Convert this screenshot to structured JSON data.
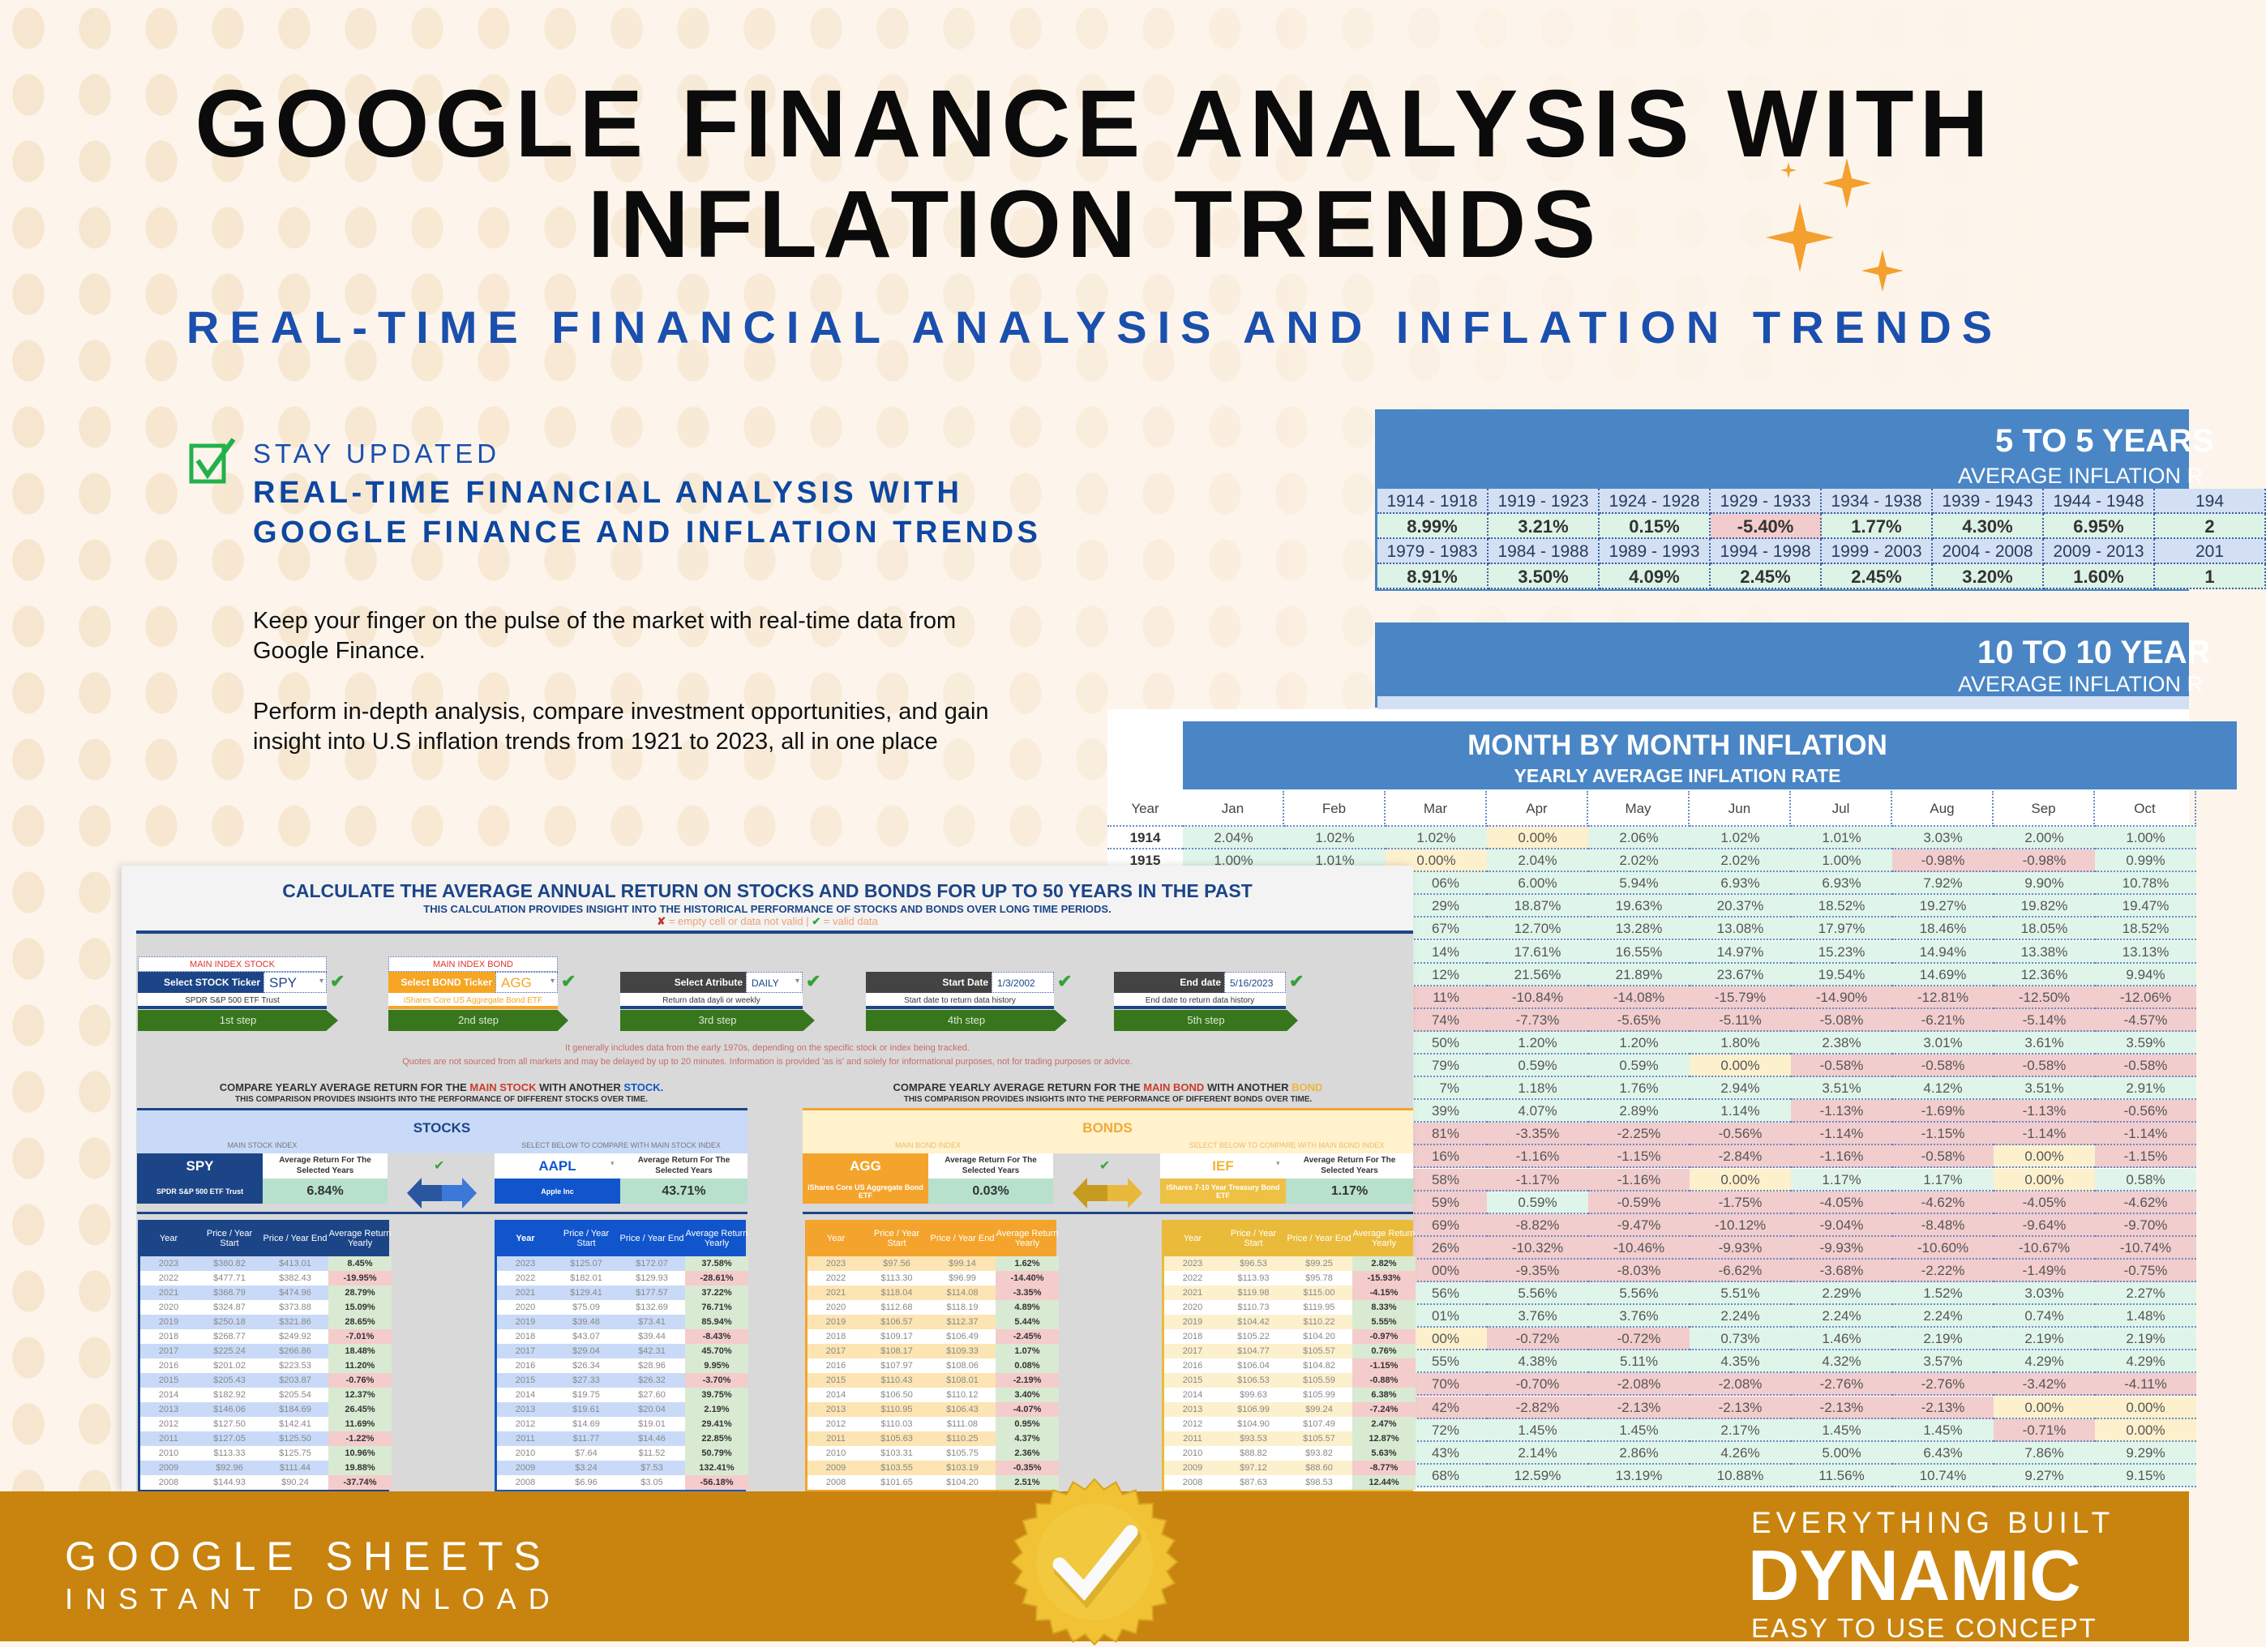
{
  "header": {
    "title_line1": "GOOGLE FINANCE ANALYSIS WITH",
    "title_line2": "INFLATION TRENDS",
    "subtitle": "REAL-TIME FINANCIAL ANALYSIS AND INFLATION TRENDS"
  },
  "feature": {
    "kicker": "STAY UPDATED",
    "heading": "REAL-TIME FINANCIAL ANALYSIS WITH GOOGLE FINANCE AND INFLATION TRENDS",
    "paragraphs": [
      "Keep your finger on the pulse of the market with real-time data from Google Finance.",
      "Perform in-depth analysis, compare investment opportunities, and gain insight into U.S inflation trends from 1921 to 2023, all in one place"
    ]
  },
  "five_year": {
    "title": "5 TO 5 YEARS",
    "subtitle": "AVERAGE INFLATION R",
    "rows": [
      {
        "ranges": [
          "1914 - 1918",
          "1919 - 1923",
          "1924 - 1928",
          "1929 - 1933",
          "1934 - 1938",
          "1939 - 1943",
          "1944 - 1948",
          "194"
        ],
        "values": [
          "8.99%",
          "3.21%",
          "0.15%",
          "-5.40%",
          "1.77%",
          "4.30%",
          "6.95%",
          "2"
        ]
      },
      {
        "ranges": [
          "1979 - 1983",
          "1984 - 1988",
          "1989 - 1993",
          "1994 - 1998",
          "1999 - 2003",
          "2004 - 2008",
          "2009 - 2013",
          "201"
        ],
        "values": [
          "8.91%",
          "3.50%",
          "4.09%",
          "2.45%",
          "2.45%",
          "3.20%",
          "1.60%",
          "1"
        ]
      }
    ]
  },
  "ten_year": {
    "title": "10 TO 10 YEAR",
    "subtitle": "AVERAGE INFLATION R"
  },
  "month": {
    "title": "MONTH BY MONTH INFLATION",
    "subtitle": "YEARLY AVERAGE INFLATION RATE",
    "columns": [
      "Year",
      "Jan",
      "Feb",
      "Mar",
      "Apr",
      "May",
      "Jun",
      "Jul",
      "Aug",
      "Sep",
      "Oct"
    ],
    "full_rows": [
      {
        "year": "1914",
        "values": [
          "2.04%",
          "1.02%",
          "1.02%",
          "0.00%",
          "2.06%",
          "1.02%",
          "1.01%",
          "3.03%",
          "2.00%",
          "1.00%"
        ]
      },
      {
        "year": "1915",
        "values": [
          "1.00%",
          "1.01%",
          "0.00%",
          "2.04%",
          "2.02%",
          "2.02%",
          "1.00%",
          "-0.98%",
          "-0.98%",
          "0.99%"
        ]
      }
    ],
    "partial_rows": [
      {
        "mar": "06%",
        "mar_tone": "pos",
        "values": [
          "6.00%",
          "5.94%",
          "6.93%",
          "6.93%",
          "7.92%",
          "9.90%",
          "10.78%"
        ]
      },
      {
        "mar": "29%",
        "mar_tone": "pos",
        "values": [
          "18.87%",
          "19.63%",
          "20.37%",
          "18.52%",
          "19.27%",
          "19.82%",
          "19.47%"
        ]
      },
      {
        "mar": "67%",
        "mar_tone": "pos",
        "values": [
          "12.70%",
          "13.28%",
          "13.08%",
          "17.97%",
          "18.46%",
          "18.05%",
          "18.52%"
        ]
      },
      {
        "mar": "14%",
        "mar_tone": "pos",
        "values": [
          "17.61%",
          "16.55%",
          "14.97%",
          "15.23%",
          "14.94%",
          "13.38%",
          "13.13%"
        ]
      },
      {
        "mar": "12%",
        "mar_tone": "pos",
        "values": [
          "21.56%",
          "21.89%",
          "23.67%",
          "19.54%",
          "14.69%",
          "12.36%",
          "9.94%"
        ]
      },
      {
        "mar": "11%",
        "mar_tone": "neg",
        "values": [
          "-10.84%",
          "-14.08%",
          "-15.79%",
          "-14.90%",
          "-12.81%",
          "-12.50%",
          "-12.06%"
        ]
      },
      {
        "mar": "74%",
        "mar_tone": "neg",
        "values": [
          "-7.73%",
          "-5.65%",
          "-5.11%",
          "-5.08%",
          "-6.21%",
          "-5.14%",
          "-4.57%"
        ]
      },
      {
        "mar": "50%",
        "mar_tone": "pos",
        "values": [
          "1.20%",
          "1.20%",
          "1.80%",
          "2.38%",
          "3.01%",
          "3.61%",
          "3.59%"
        ]
      },
      {
        "mar": "79%",
        "mar_tone": "pos",
        "values": [
          "0.59%",
          "0.59%",
          "0.00%",
          "-0.58%",
          "-0.58%",
          "-0.58%",
          "-0.58%"
        ]
      },
      {
        "mar": "7%",
        "mar_tone": "pos",
        "values": [
          "1.18%",
          "1.76%",
          "2.94%",
          "3.51%",
          "4.12%",
          "3.51%",
          "2.91%"
        ]
      },
      {
        "mar": "39%",
        "mar_tone": "pos",
        "values": [
          "4.07%",
          "2.89%",
          "1.14%",
          "-1.13%",
          "-1.69%",
          "-1.13%",
          "-0.56%"
        ]
      },
      {
        "mar": "81%",
        "mar_tone": "neg",
        "values": [
          "-3.35%",
          "-2.25%",
          "-0.56%",
          "-1.14%",
          "-1.15%",
          "-1.14%",
          "-1.14%"
        ]
      },
      {
        "mar": "16%",
        "mar_tone": "neg",
        "values": [
          "-1.16%",
          "-1.15%",
          "-2.84%",
          "-1.16%",
          "-0.58%",
          "0.00%",
          "-1.15%"
        ]
      },
      {
        "mar": "58%",
        "mar_tone": "neg",
        "values": [
          "-1.17%",
          "-1.16%",
          "0.00%",
          "1.17%",
          "1.17%",
          "0.00%",
          "0.58%"
        ]
      },
      {
        "mar": "59%",
        "mar_tone": "neg",
        "values": [
          "0.59%",
          "-0.59%",
          "-1.75%",
          "-4.05%",
          "-4.62%",
          "-4.05%",
          "-4.62%"
        ]
      },
      {
        "mar": "69%",
        "mar_tone": "neg",
        "values": [
          "-8.82%",
          "-9.47%",
          "-10.12%",
          "-9.04%",
          "-8.48%",
          "-9.64%",
          "-9.70%"
        ]
      },
      {
        "mar": "26%",
        "mar_tone": "neg",
        "values": [
          "-10.32%",
          "-10.46%",
          "-9.93%",
          "-9.93%",
          "-10.60%",
          "-10.67%",
          "-10.74%"
        ]
      },
      {
        "mar": "00%",
        "mar_tone": "neg",
        "values": [
          "-9.35%",
          "-8.03%",
          "-6.62%",
          "-3.68%",
          "-2.22%",
          "-1.49%",
          "-0.75%"
        ]
      },
      {
        "mar": "56%",
        "mar_tone": "pos",
        "values": [
          "5.56%",
          "5.56%",
          "5.51%",
          "2.29%",
          "1.52%",
          "3.03%",
          "2.27%"
        ]
      },
      {
        "mar": "01%",
        "mar_tone": "pos",
        "values": [
          "3.76%",
          "3.76%",
          "2.24%",
          "2.24%",
          "2.24%",
          "0.74%",
          "1.48%"
        ]
      },
      {
        "mar": "00%",
        "mar_tone": "zero",
        "values": [
          "-0.72%",
          "-0.72%",
          "0.73%",
          "1.46%",
          "2.19%",
          "2.19%",
          "2.19%"
        ]
      },
      {
        "mar": "55%",
        "mar_tone": "pos",
        "values": [
          "4.38%",
          "5.11%",
          "4.35%",
          "4.32%",
          "3.57%",
          "4.29%",
          "4.29%"
        ]
      },
      {
        "mar": "70%",
        "mar_tone": "neg",
        "values": [
          "-0.70%",
          "-2.08%",
          "-2.08%",
          "-2.76%",
          "-2.76%",
          "-3.42%",
          "-4.11%"
        ]
      },
      {
        "mar": "42%",
        "mar_tone": "neg",
        "values": [
          "-2.82%",
          "-2.13%",
          "-2.13%",
          "-2.13%",
          "-2.13%",
          "0.00%",
          "0.00%"
        ]
      },
      {
        "mar": "72%",
        "mar_tone": "pos",
        "values": [
          "1.45%",
          "1.45%",
          "2.17%",
          "1.45%",
          "1.45%",
          "-0.71%",
          "0.00%"
        ]
      },
      {
        "mar": "43%",
        "mar_tone": "pos",
        "values": [
          "2.14%",
          "2.86%",
          "4.26%",
          "5.00%",
          "6.43%",
          "7.86%",
          "9.29%"
        ]
      },
      {
        "mar": "68%",
        "mar_tone": "pos",
        "values": [
          "12.59%",
          "13.19%",
          "10.88%",
          "11.56%",
          "10.74%",
          "9.27%",
          "9.15%"
        ]
      }
    ]
  },
  "calc": {
    "title": "CALCULATE THE AVERAGE ANNUAL RETURN ON STOCKS AND BONDS FOR UP TO 50 YEARS IN THE PAST",
    "subtitle": "THIS CALCULATION PROVIDES INSIGHT INTO THE HISTORICAL PERFORMANCE OF STOCKS AND BONDS OVER LONG TIME PERIODS.",
    "legend_invalid_mark": "✘",
    "legend_invalid": "= empty cell or data not valid",
    "legend_sep": "|",
    "legend_valid_mark": "✔",
    "legend_valid": "= valid data",
    "steps": [
      {
        "label": "MAIN INDEX STOCK",
        "field": "Select STOCK Ticker",
        "value": "SPY",
        "desc": "SPDR S&P 500 ETF Trust",
        "step": "1st step"
      },
      {
        "label": "MAIN INDEX BOND",
        "field": "Select BOND Ticker",
        "value": "AGG",
        "desc": "iShares Core US Aggregate Bond ETF",
        "step": "2nd step"
      },
      {
        "field": "Select Atribute",
        "value": "DAILY",
        "desc": "Return data dayli or weekly",
        "step": "3rd step"
      },
      {
        "field": "Start Date",
        "value": "1/3/2002",
        "desc": "Start date to return data history",
        "step": "4th step"
      },
      {
        "field": "End date",
        "value": "5/16/2023",
        "desc": "End date to return data history",
        "step": "5th step"
      }
    ],
    "notes": [
      "It generally includes data from the early 1970s, depending on the specific stock or index being tracked.",
      "Quotes are not sourced from all markets and may be delayed by up to 20 minutes. Information is provided 'as is' and solely for informational purposes, not for trading purposes or advice."
    ],
    "stock_compare": {
      "title_a": "COMPARE YEARLY AVERAGE RETURN FOR THE ",
      "title_b": "MAIN STOCK",
      "title_c": " WITH ANOTHER ",
      "title_d": "STOCK.",
      "subtitle": "THIS COMPARISON PROVIDES INSIGHTS INTO THE PERFORMANCE OF DIFFERENT STOCKS OVER TIME.",
      "section_label": "STOCKS",
      "main_caption": "MAIN STOCK INDEX",
      "main_ticker": "SPY",
      "main_name": "SPDR S&P 500 ETF Trust",
      "avg_label": "Average Return For The Selected Years",
      "main_avg": "6.84%",
      "compare_caption": "SELECT BELOW TO COMPARE WITH MAIN STOCK INDEX",
      "compare_ticker": "AAPL",
      "compare_name": "Apple Inc",
      "compare_avg": "43.71%"
    },
    "bond_compare": {
      "title_a": "COMPARE YEARLY AVERAGE RETURN FOR THE ",
      "title_b": "MAIN BOND",
      "title_c": " WITH ANOTHER ",
      "title_d": "BOND",
      "subtitle": "THIS COMPARISON PROVIDES INSIGHTS INTO THE PERFORMANCE OF DIFFERENT BONDS OVER TIME.",
      "section_label": "BONDS",
      "main_caption": "MAIN BOND INDEX",
      "main_ticker": "AGG",
      "main_name": "iShares Core US Aggregate Bond ETF",
      "avg_label": "Average Return For The Selected Years",
      "main_avg": "0.03%",
      "compare_caption": "SELECT BELOW TO COMPARE WITH MAIN BOND INDEX",
      "compare_ticker": "IEF",
      "compare_name": "iShares 7-10 Year Treasury Bond ETF",
      "compare_avg": "1.17%"
    },
    "table_headers": [
      "Year",
      "Price / Year Start",
      "Price / Year End",
      "Average Return Yearly"
    ],
    "tables": [
      {
        "rows": [
          [
            "2023",
            "$380.82",
            "$413.01",
            "8.45%"
          ],
          [
            "2022",
            "$477.71",
            "$382.43",
            "-19.95%"
          ],
          [
            "2021",
            "$368.79",
            "$474.96",
            "28.79%"
          ],
          [
            "2020",
            "$324.87",
            "$373.88",
            "15.09%"
          ],
          [
            "2019",
            "$250.18",
            "$321.86",
            "28.65%"
          ],
          [
            "2018",
            "$268.77",
            "$249.92",
            "-7.01%"
          ],
          [
            "2017",
            "$225.24",
            "$266.86",
            "18.48%"
          ],
          [
            "2016",
            "$201.02",
            "$223.53",
            "11.20%"
          ],
          [
            "2015",
            "$205.43",
            "$203.87",
            "-0.76%"
          ],
          [
            "2014",
            "$182.92",
            "$205.54",
            "12.37%"
          ],
          [
            "2013",
            "$146.06",
            "$184.69",
            "26.45%"
          ],
          [
            "2012",
            "$127.50",
            "$142.41",
            "11.69%"
          ],
          [
            "2011",
            "$127.05",
            "$125.50",
            "-1.22%"
          ],
          [
            "2010",
            "$113.33",
            "$125.75",
            "10.96%"
          ],
          [
            "2009",
            "$92.96",
            "$111.44",
            "19.88%"
          ],
          [
            "2008",
            "$144.93",
            "$90.24",
            "-37.74%"
          ]
        ]
      },
      {
        "rows": [
          [
            "2023",
            "$125.07",
            "$172.07",
            "37.58%"
          ],
          [
            "2022",
            "$182.01",
            "$129.93",
            "-28.61%"
          ],
          [
            "2021",
            "$129.41",
            "$177.57",
            "37.22%"
          ],
          [
            "2020",
            "$75.09",
            "$132.69",
            "76.71%"
          ],
          [
            "2019",
            "$39.48",
            "$73.41",
            "85.94%"
          ],
          [
            "2018",
            "$43.07",
            "$39.44",
            "-8.43%"
          ],
          [
            "2017",
            "$29.04",
            "$42.31",
            "45.70%"
          ],
          [
            "2016",
            "$26.34",
            "$28.96",
            "9.95%"
          ],
          [
            "2015",
            "$27.33",
            "$26.32",
            "-3.70%"
          ],
          [
            "2014",
            "$19.75",
            "$27.60",
            "39.75%"
          ],
          [
            "2013",
            "$19.61",
            "$20.04",
            "2.19%"
          ],
          [
            "2012",
            "$14.69",
            "$19.01",
            "29.41%"
          ],
          [
            "2011",
            "$11.77",
            "$14.46",
            "22.85%"
          ],
          [
            "2010",
            "$7.64",
            "$11.52",
            "50.79%"
          ],
          [
            "2009",
            "$3.24",
            "$7.53",
            "132.41%"
          ],
          [
            "2008",
            "$6.96",
            "$3.05",
            "-56.18%"
          ]
        ]
      },
      {
        "rows": [
          [
            "2023",
            "$97.56",
            "$99.14",
            "1.62%"
          ],
          [
            "2022",
            "$113.30",
            "$96.99",
            "-14.40%"
          ],
          [
            "2021",
            "$118.04",
            "$114.08",
            "-3.35%"
          ],
          [
            "2020",
            "$112.68",
            "$118.19",
            "4.89%"
          ],
          [
            "2019",
            "$106.57",
            "$112.37",
            "5.44%"
          ],
          [
            "2018",
            "$109.17",
            "$106.49",
            "-2.45%"
          ],
          [
            "2017",
            "$108.17",
            "$109.33",
            "1.07%"
          ],
          [
            "2016",
            "$107.97",
            "$108.06",
            "0.08%"
          ],
          [
            "2015",
            "$110.43",
            "$108.01",
            "-2.19%"
          ],
          [
            "2014",
            "$106.50",
            "$110.12",
            "3.40%"
          ],
          [
            "2013",
            "$110.95",
            "$106.43",
            "-4.07%"
          ],
          [
            "2012",
            "$110.03",
            "$111.08",
            "0.95%"
          ],
          [
            "2011",
            "$105.63",
            "$110.25",
            "4.37%"
          ],
          [
            "2010",
            "$103.31",
            "$105.75",
            "2.36%"
          ],
          [
            "2009",
            "$103.55",
            "$103.19",
            "-0.35%"
          ],
          [
            "2008",
            "$101.65",
            "$104.20",
            "2.51%"
          ]
        ]
      },
      {
        "rows": [
          [
            "2023",
            "$96.53",
            "$99.25",
            "2.82%"
          ],
          [
            "2022",
            "$113.93",
            "$95.78",
            "-15.93%"
          ],
          [
            "2021",
            "$119.98",
            "$115.00",
            "-4.15%"
          ],
          [
            "2020",
            "$110.73",
            "$119.95",
            "8.33%"
          ],
          [
            "2019",
            "$104.42",
            "$110.22",
            "5.55%"
          ],
          [
            "2018",
            "$105.22",
            "$104.20",
            "-0.97%"
          ],
          [
            "2017",
            "$104.77",
            "$105.57",
            "0.76%"
          ],
          [
            "2016",
            "$106.04",
            "$104.82",
            "-1.15%"
          ],
          [
            "2015",
            "$106.53",
            "$105.59",
            "-0.88%"
          ],
          [
            "2014",
            "$99.63",
            "$105.99",
            "6.38%"
          ],
          [
            "2013",
            "$106.99",
            "$99.24",
            "-7.24%"
          ],
          [
            "2012",
            "$104.90",
            "$107.49",
            "2.47%"
          ],
          [
            "2011",
            "$93.53",
            "$105.57",
            "12.87%"
          ],
          [
            "2010",
            "$88.82",
            "$93.82",
            "5.63%"
          ],
          [
            "2009",
            "$97.12",
            "$88.60",
            "-8.77%"
          ],
          [
            "2008",
            "$87.63",
            "$98.53",
            "12.44%"
          ]
        ]
      }
    ]
  },
  "banner": {
    "left_line1": "GOOGLE SHEETS",
    "left_line2": "INSTANT DOWNLOAD",
    "right_line1": "EVERYTHING BUILT",
    "right_line2": "DYNAMIC",
    "right_line3": "EASY TO USE CONCEPT"
  },
  "colors": {
    "accent_blue": "#1a4fae",
    "header_blue": "#4a86c5",
    "banner_gold": "#c9840f",
    "positive": "#e0f5ea",
    "negative": "#f2cdcd",
    "zero": "#fdf0cc",
    "stock_main": "#1c4587",
    "stock_compare": "#1155cc",
    "bond_main": "#f4a42c",
    "bond_compare": "#eec043"
  }
}
